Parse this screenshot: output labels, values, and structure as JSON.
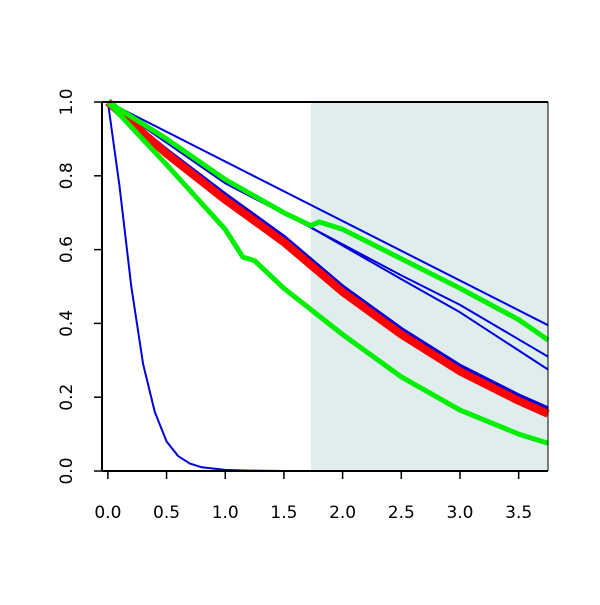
{
  "chart_data": {
    "type": "line",
    "title": "",
    "xlabel": "",
    "ylabel": "",
    "xlim": [
      -0.05,
      3.75
    ],
    "ylim": [
      0.0,
      1.0
    ],
    "x_ticks": [
      0.0,
      0.5,
      1.0,
      1.5,
      2.0,
      2.5,
      3.0,
      3.5
    ],
    "x_tick_labels": [
      "0.0",
      "0.5",
      "1.0",
      "1.5",
      "2.0",
      "2.5",
      "3.0",
      "3.5"
    ],
    "y_ticks": [
      0.0,
      0.2,
      0.4,
      0.6,
      0.8,
      1.0
    ],
    "y_tick_labels": [
      "0.0",
      "0.2",
      "0.4",
      "0.6",
      "0.8",
      "1.0"
    ],
    "grid": false,
    "legend": "none",
    "shaded_region": {
      "x_start": 1.73,
      "x_end": 3.75,
      "color": "#e0eded"
    },
    "series": [
      {
        "color": "#0000dd",
        "width": 2,
        "points": [
          [
            0,
            1.0
          ],
          [
            0.1,
            0.77
          ],
          [
            0.2,
            0.5
          ],
          [
            0.3,
            0.29
          ],
          [
            0.4,
            0.16
          ],
          [
            0.5,
            0.08
          ],
          [
            0.6,
            0.04
          ],
          [
            0.7,
            0.02
          ],
          [
            0.8,
            0.01
          ],
          [
            1.0,
            0.003
          ],
          [
            1.2,
            0.001
          ],
          [
            1.5,
            0.0
          ],
          [
            2.0,
            0.0
          ],
          [
            3.0,
            0.0
          ],
          [
            3.75,
            0.0
          ]
        ]
      },
      {
        "color": "#0000dd",
        "width": 2,
        "points": [
          [
            0,
            1.0
          ],
          [
            3.75,
            0.395
          ]
        ]
      },
      {
        "color": "#0000dd",
        "width": 2,
        "points": [
          [
            0,
            1.0
          ],
          [
            1.0,
            0.78
          ],
          [
            1.73,
            0.66
          ],
          [
            2.5,
            0.53
          ],
          [
            3.0,
            0.45
          ],
          [
            3.75,
            0.31
          ]
        ]
      },
      {
        "color": "#0000dd",
        "width": 2,
        "points": [
          [
            0,
            1.0
          ],
          [
            1.0,
            0.78
          ],
          [
            1.73,
            0.66
          ],
          [
            2.5,
            0.52
          ],
          [
            3.0,
            0.43
          ],
          [
            3.75,
            0.275
          ]
        ]
      },
      {
        "color": "#0000dd",
        "width": 4,
        "points": [
          [
            0,
            1.0
          ],
          [
            0.5,
            0.87
          ],
          [
            1.0,
            0.75
          ],
          [
            1.5,
            0.635
          ],
          [
            2.0,
            0.5
          ],
          [
            2.5,
            0.385
          ],
          [
            3.0,
            0.285
          ],
          [
            3.5,
            0.205
          ],
          [
            3.75,
            0.17
          ]
        ]
      },
      {
        "color": "#ff0000",
        "width": 8,
        "points": [
          [
            0,
            1.0
          ],
          [
            0.5,
            0.86
          ],
          [
            1.0,
            0.735
          ],
          [
            1.5,
            0.62
          ],
          [
            2.0,
            0.485
          ],
          [
            2.5,
            0.37
          ],
          [
            3.0,
            0.27
          ],
          [
            3.5,
            0.19
          ],
          [
            3.75,
            0.155
          ]
        ]
      },
      {
        "color": "#00ee00",
        "width": 5,
        "points": [
          [
            0,
            1.0
          ],
          [
            0.5,
            0.9
          ],
          [
            1.0,
            0.79
          ],
          [
            1.5,
            0.7
          ],
          [
            1.73,
            0.665
          ],
          [
            1.8,
            0.675
          ],
          [
            2.0,
            0.655
          ],
          [
            2.5,
            0.575
          ],
          [
            3.0,
            0.495
          ],
          [
            3.5,
            0.41
          ],
          [
            3.75,
            0.355
          ]
        ]
      },
      {
        "color": "#00ee00",
        "width": 5,
        "points": [
          [
            0,
            1.0
          ],
          [
            0.5,
            0.83
          ],
          [
            1.0,
            0.655
          ],
          [
            1.15,
            0.58
          ],
          [
            1.25,
            0.57
          ],
          [
            1.5,
            0.495
          ],
          [
            2.0,
            0.37
          ],
          [
            2.5,
            0.255
          ],
          [
            3.0,
            0.165
          ],
          [
            3.5,
            0.1
          ],
          [
            3.75,
            0.075
          ]
        ]
      }
    ]
  }
}
